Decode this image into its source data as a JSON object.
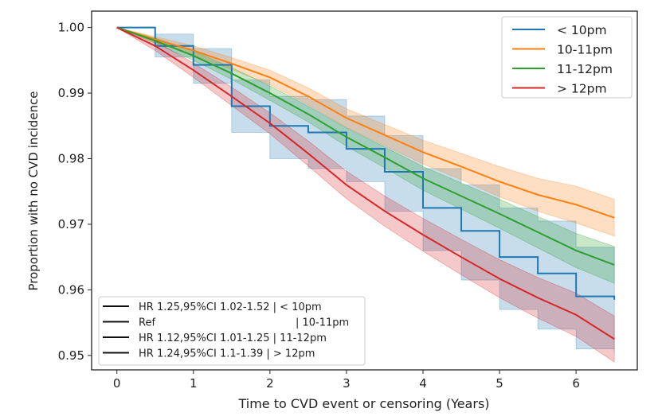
{
  "chart_data": {
    "type": "line",
    "title": "",
    "xlabel": "Time to CVD event or censoring (Years)",
    "ylabel": "Proportion with no CVD incidence",
    "xlim": [
      -0.33,
      6.8
    ],
    "ylim": [
      0.9478,
      1.0025
    ],
    "xticks": [
      0,
      1,
      2,
      3,
      4,
      5,
      6
    ],
    "yticks": [
      0.95,
      0.96,
      0.97,
      0.98,
      0.99,
      1.0
    ],
    "ytick_labels": [
      "0.95",
      "0.96",
      "0.97",
      "0.98",
      "0.99",
      "1.00"
    ],
    "grid": false,
    "legend_position": "top-right",
    "x": [
      0,
      0.5,
      1,
      1.5,
      2,
      2.5,
      3,
      3.5,
      4,
      4.5,
      5,
      5.5,
      6,
      6.5
    ],
    "series": [
      {
        "name": "< 10pm",
        "color": "#1f77b4",
        "step": true,
        "values": [
          1.0,
          0.9972,
          0.9943,
          0.988,
          0.985,
          0.984,
          0.9815,
          0.978,
          0.9725,
          0.969,
          0.965,
          0.9625,
          0.959,
          0.9585
        ],
        "ci_lower": [
          1.0,
          0.9955,
          0.9915,
          0.984,
          0.98,
          0.9785,
          0.9765,
          0.972,
          0.966,
          0.9615,
          0.957,
          0.954,
          0.951,
          0.9505
        ],
        "ci_upper": [
          1.0,
          0.999,
          0.9968,
          0.992,
          0.9895,
          0.989,
          0.9865,
          0.9835,
          0.9785,
          0.976,
          0.9725,
          0.9705,
          0.9665,
          0.966
        ]
      },
      {
        "name": "10-11pm",
        "color": "#ff7f0e",
        "step": false,
        "values": [
          1.0,
          0.9982,
          0.9965,
          0.9945,
          0.9924,
          0.9895,
          0.9862,
          0.9836,
          0.981,
          0.9788,
          0.9765,
          0.9745,
          0.973,
          0.971
        ],
        "ci_lower": [
          1.0,
          0.9978,
          0.9958,
          0.9936,
          0.9913,
          0.9882,
          0.9848,
          0.982,
          0.9792,
          0.9768,
          0.9742,
          0.972,
          0.9702,
          0.9682
        ],
        "ci_upper": [
          1.0,
          0.9986,
          0.9972,
          0.9954,
          0.9935,
          0.9908,
          0.9876,
          0.9852,
          0.9828,
          0.9808,
          0.9788,
          0.977,
          0.9758,
          0.9738
        ]
      },
      {
        "name": "11-12pm",
        "color": "#2ca02c",
        "step": false,
        "values": [
          1.0,
          0.998,
          0.9957,
          0.993,
          0.99,
          0.9868,
          0.9833,
          0.9802,
          0.977,
          0.9743,
          0.9716,
          0.9688,
          0.966,
          0.9638
        ],
        "ci_lower": [
          1.0,
          0.9976,
          0.995,
          0.9921,
          0.9889,
          0.9856,
          0.9819,
          0.9786,
          0.9752,
          0.9723,
          0.9694,
          0.9664,
          0.9634,
          0.961
        ],
        "ci_upper": [
          1.0,
          0.9984,
          0.9964,
          0.9939,
          0.9911,
          0.988,
          0.9847,
          0.9818,
          0.9788,
          0.9763,
          0.9738,
          0.9712,
          0.9686,
          0.9666
        ]
      },
      {
        "name": "> 12pm",
        "color": "#d62728",
        "step": false,
        "values": [
          1.0,
          0.9972,
          0.9935,
          0.9895,
          0.9854,
          0.9808,
          0.976,
          0.972,
          0.9684,
          0.965,
          0.9617,
          0.9588,
          0.9562,
          0.9525
        ],
        "ci_lower": [
          1.0,
          0.9965,
          0.9924,
          0.9881,
          0.9838,
          0.9789,
          0.9739,
          0.9697,
          0.9659,
          0.9623,
          0.9588,
          0.9557,
          0.9529,
          0.949
        ],
        "ci_upper": [
          1.0,
          0.9979,
          0.9946,
          0.9909,
          0.987,
          0.9827,
          0.9781,
          0.9743,
          0.9709,
          0.9677,
          0.9646,
          0.9619,
          0.9595,
          0.956
        ]
      }
    ],
    "hr_legend": {
      "position": "bottom-left",
      "entries": [
        "HR 1.25,95%CI 1.02-1.52 | < 10pm",
        "Ref                              | 10-11pm",
        "HR 1.12,95%CI 1.01-1.25 | 11-12pm",
        "HR 1.24,95%CI 1.1-1.39 | > 12pm"
      ]
    }
  }
}
